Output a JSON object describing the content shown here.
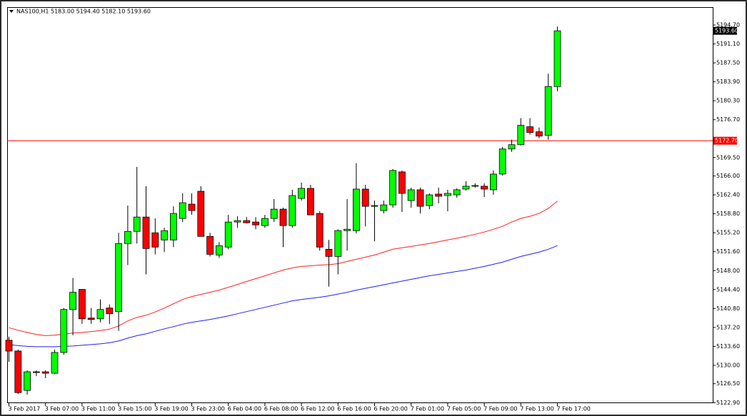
{
  "chart_data": {
    "type": "candlestick",
    "title": "NAS100,H1 5183.00 5194.40 5182.10 5193.60",
    "categories": [
      "3 Feb 2017",
      null,
      null,
      null,
      "3 Feb 07:00",
      null,
      null,
      null,
      "3 Feb 11:00",
      null,
      null,
      null,
      "3 Feb 15:00",
      null,
      null,
      null,
      "3 Feb 19:00",
      null,
      null,
      null,
      "3 Feb 23:00",
      null,
      null,
      null,
      "6 Feb 04:00",
      null,
      null,
      null,
      "6 Feb 08:00",
      null,
      null,
      null,
      "6 Feb 12:00",
      null,
      null,
      null,
      "6 Feb 16:00",
      null,
      null,
      null,
      "6 Feb 20:00",
      null,
      null,
      null,
      "7 Feb 01:00",
      null,
      null,
      null,
      "7 Feb 05:00",
      null,
      null,
      null,
      "7 Feb 09:00",
      null,
      null,
      null,
      "7 Feb 13:00",
      null,
      null,
      null,
      "7 Feb 17:00"
    ],
    "open": [
      5134.76,
      5132.71,
      5125.22,
      5128.76,
      5128.76,
      5128.49,
      5132.44,
      5140.61,
      5144.43,
      5138.98,
      5138.84,
      5140.89,
      5140.2,
      5153.15,
      5155.46,
      5158.19,
      5155.19,
      5153.83,
      5153.83,
      5157.92,
      5160.64,
      5163.09,
      5154.51,
      5150.97,
      5152.47,
      5157.24,
      5157.51,
      5157.24,
      5156.56,
      5157.92,
      5159.69,
      5156.56,
      5161.73,
      5163.64,
      5158.87,
      5152.06,
      5150.7,
      5155.6,
      5155.6,
      5163.5,
      5160.23,
      5159.42,
      5160.5,
      5166.77,
      5161.32,
      5163.37,
      5160.37,
      5162.55,
      5162.28,
      5162.41,
      5163.5,
      5164.18,
      5164.05,
      5163.37,
      5166.36,
      5171.13,
      5171.95,
      5175.36,
      5174.4,
      5173.72,
      5183.0
    ],
    "high": [
      5135.44,
      5132.99,
      5129.04,
      5129.04,
      5129.04,
      5132.99,
      5140.89,
      5146.61,
      5144.43,
      5140.89,
      5142.52,
      5141.57,
      5155.19,
      5160.37,
      5167.73,
      5164.05,
      5157.92,
      5156.15,
      5160.23,
      5162.69,
      5162.69,
      5164.05,
      5155.19,
      5153.42,
      5158.6,
      5158.33,
      5158.19,
      5158.19,
      5158.6,
      5161.6,
      5159.96,
      5163.37,
      5164.73,
      5164.32,
      5159.28,
      5153.83,
      5155.87,
      5161.6,
      5168.41,
      5164.32,
      5161.32,
      5161.32,
      5167.32,
      5167.04,
      5163.78,
      5163.78,
      5162.69,
      5163.78,
      5163.37,
      5163.64,
      5165.0,
      5164.59,
      5164.59,
      5167.04,
      5171.54,
      5172.9,
      5176.99,
      5176.99,
      5175.22,
      5185.44,
      5194.4
    ],
    "low": [
      5130.67,
      5124.54,
      5124.4,
      5127.94,
      5127.54,
      5128.35,
      5132.03,
      5135.71,
      5137.89,
      5137.89,
      5138.16,
      5137.89,
      5136.53,
      5149.06,
      5153.15,
      5147.29,
      5151.1,
      5151.51,
      5152.47,
      5157.24,
      5158.6,
      5154.51,
      5150.7,
      5150.42,
      5152.06,
      5156.15,
      5156.96,
      5155.87,
      5156.15,
      5157.24,
      5152.47,
      5156.15,
      5161.32,
      5158.6,
      5151.79,
      5144.97,
      5147.29,
      5151.79,
      5155.06,
      5156.42,
      5153.56,
      5158.87,
      5159.96,
      5159.14,
      5159.96,
      5158.87,
      5159.69,
      5160.78,
      5159.28,
      5161.87,
      5163.23,
      5163.78,
      5162.0,
      5162.41,
      5166.09,
      5170.59,
      5171.81,
      5173.86,
      5173.18,
      5172.9,
      5182.1
    ],
    "close": [
      5132.71,
      5124.81,
      5128.76,
      5128.63,
      5128.49,
      5132.44,
      5140.61,
      5143.88,
      5138.84,
      5138.71,
      5140.61,
      5139.8,
      5153.15,
      5155.46,
      5158.19,
      5152.2,
      5152.47,
      5155.6,
      5158.87,
      5160.91,
      5159.42,
      5154.51,
      5151.1,
      5152.74,
      5157.24,
      5157.51,
      5157.1,
      5156.69,
      5157.92,
      5159.69,
      5156.56,
      5162.28,
      5163.64,
      5158.6,
      5152.47,
      5150.7,
      5155.6,
      5155.87,
      5163.5,
      5160.23,
      5160.37,
      5160.5,
      5167.04,
      5162.69,
      5163.37,
      5160.23,
      5162.41,
      5162.14,
      5162.69,
      5163.37,
      5164.05,
      5164.18,
      5163.5,
      5166.36,
      5171.13,
      5171.95,
      5175.63,
      5174.27,
      5173.58,
      5183.0,
      5193.6
    ],
    "up_color": "#00ff00",
    "down_color": "#ff0000",
    "lines": [
      {
        "color": "#ff2020",
        "values": [
          5137.14,
          5136.66,
          5136.25,
          5135.85,
          5135.64,
          5135.71,
          5135.91,
          5136.12,
          5136.25,
          5136.39,
          5136.6,
          5136.87,
          5137.48,
          5138.43,
          5139.12,
          5139.52,
          5140.14,
          5140.89,
          5141.7,
          5142.52,
          5143.07,
          5143.48,
          5143.88,
          5144.29,
          5144.84,
          5145.38,
          5145.93,
          5146.47,
          5147.02,
          5147.56,
          5148.11,
          5148.52,
          5148.79,
          5148.92,
          5149.06,
          5149.13,
          5149.33,
          5149.74,
          5150.15,
          5150.56,
          5150.97,
          5151.51,
          5152.06,
          5152.33,
          5152.6,
          5152.88,
          5153.15,
          5153.49,
          5153.83,
          5154.17,
          5154.51,
          5154.92,
          5155.33,
          5155.87,
          5156.42,
          5157.24,
          5157.92,
          5158.33,
          5158.87,
          5159.82,
          5161.19
        ]
      },
      {
        "color": "#2020ff",
        "values": [
          5133.94,
          5133.73,
          5133.6,
          5133.53,
          5133.53,
          5133.53,
          5133.6,
          5133.67,
          5133.8,
          5133.94,
          5134.07,
          5134.28,
          5134.62,
          5135.16,
          5135.64,
          5135.98,
          5136.46,
          5136.94,
          5137.34,
          5137.82,
          5138.16,
          5138.43,
          5138.71,
          5139.05,
          5139.39,
          5139.8,
          5140.21,
          5140.61,
          5141.02,
          5141.43,
          5141.84,
          5142.25,
          5142.52,
          5142.73,
          5142.93,
          5143.2,
          5143.54,
          5143.88,
          5144.29,
          5144.63,
          5144.97,
          5145.31,
          5145.66,
          5146.0,
          5146.34,
          5146.68,
          5147.02,
          5147.29,
          5147.56,
          5147.84,
          5148.11,
          5148.45,
          5148.79,
          5149.2,
          5149.61,
          5150.15,
          5150.7,
          5151.1,
          5151.51,
          5152.06,
          5152.74
        ]
      }
    ],
    "hline": {
      "value": 5172.7,
      "label": "5172.70",
      "color": "#ff0000"
    },
    "last_price_label": "5193.60",
    "ylim": [
      5122.8,
      5198.1
    ],
    "yticks": [
      {
        "value": 5194.7,
        "label": "5194.70"
      },
      {
        "value": 5191.1,
        "label": "5191.10"
      },
      {
        "value": 5187.5,
        "label": "5187.50"
      },
      {
        "value": 5183.9,
        "label": "5183.90"
      },
      {
        "value": 5180.3,
        "label": "5180.30"
      },
      {
        "value": 5176.7,
        "label": "5176.70"
      },
      {
        "value": 5169.5,
        "label": "5169.50"
      },
      {
        "value": 5166,
        "label": "5166.00"
      },
      {
        "value": 5162.4,
        "label": "5162.40"
      },
      {
        "value": 5158.8,
        "label": "5158.80"
      },
      {
        "value": 5155.2,
        "label": "5155.20"
      },
      {
        "value": 5151.6,
        "label": "5151.60"
      },
      {
        "value": 5148,
        "label": "5148.00"
      },
      {
        "value": 5144.4,
        "label": "5144.40"
      },
      {
        "value": 5140.8,
        "label": "5140.80"
      },
      {
        "value": 5137.2,
        "label": "5137.20"
      },
      {
        "value": 5133.6,
        "label": "5133.60"
      },
      {
        "value": 5130,
        "label": "5130.00"
      },
      {
        "value": 5126.5,
        "label": "5126.50"
      },
      {
        "value": 5122.9,
        "label": "5122.90"
      }
    ],
    "grid": false
  }
}
